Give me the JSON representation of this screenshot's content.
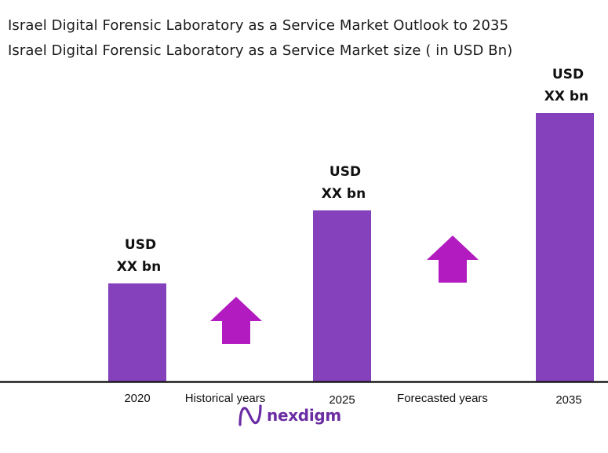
{
  "header": {
    "title": "Israel Digital Forensic Laboratory as a Service Market Outlook to 2035",
    "subtitle": "Israel Digital Forensic Laboratory as a Service Market  size ( in USD Bn)"
  },
  "chart_data": {
    "type": "bar",
    "categories": [
      "2020",
      "2025",
      "2035"
    ],
    "values": [
      125,
      218,
      342
    ],
    "value_labels": [
      {
        "line1": "USD",
        "line2": "XX bn"
      },
      {
        "line1": "USD",
        "line2": "XX bn"
      },
      {
        "line1": "USD",
        "line2": "XX bn"
      }
    ],
    "period_labels": [
      "Historical years",
      "Forecasted years"
    ],
    "ylim": [
      0,
      342
    ],
    "grid": false,
    "legend": "none",
    "colors": {
      "bar": "#8540bb",
      "arrow": "#b21bbf",
      "axis": "#1a1a1a"
    }
  },
  "logo": {
    "text": "nexdigm",
    "icon": "nexdigm-logo-icon",
    "color": "#6a2da3"
  }
}
